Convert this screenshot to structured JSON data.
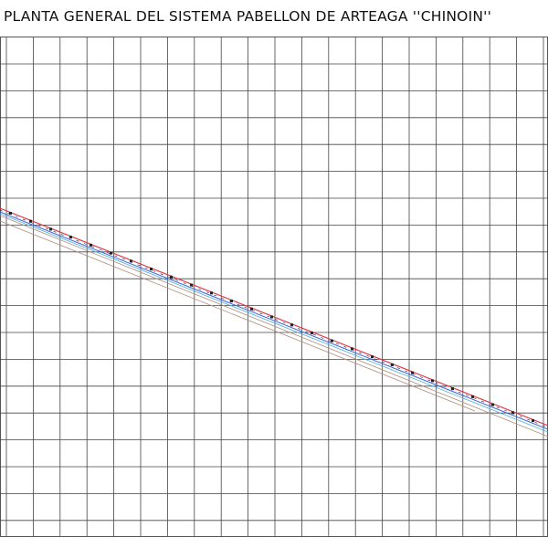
{
  "header": {
    "title": "PLANTA GENERAL DEL SISTEMA PABELLON DE ARTEAGA ''CHINOIN''"
  }
}
